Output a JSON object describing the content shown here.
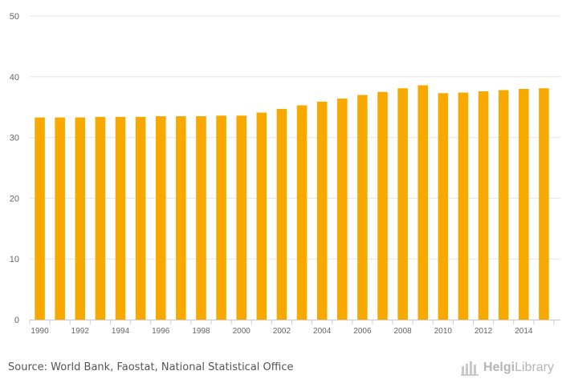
{
  "chart_data": {
    "type": "bar",
    "categories": [
      "1990",
      "1991",
      "1992",
      "1993",
      "1994",
      "1995",
      "1996",
      "1997",
      "1998",
      "1999",
      "2000",
      "2001",
      "2002",
      "2003",
      "2004",
      "2005",
      "2006",
      "2007",
      "2008",
      "2009",
      "2010",
      "2011",
      "2012",
      "2013",
      "2014",
      "2015"
    ],
    "x_tick_labels": [
      "1990",
      "1992",
      "1994",
      "1996",
      "1998",
      "2000",
      "2002",
      "2004",
      "2006",
      "2008",
      "2010",
      "2012",
      "2014"
    ],
    "values": [
      33.3,
      33.3,
      33.3,
      33.4,
      33.4,
      33.4,
      33.5,
      33.5,
      33.5,
      33.6,
      33.6,
      34.1,
      34.7,
      35.3,
      35.9,
      36.4,
      37.0,
      37.5,
      38.1,
      38.6,
      37.3,
      37.4,
      37.6,
      37.8,
      38.0,
      38.1
    ],
    "yticks": [
      0,
      10,
      20,
      30,
      40,
      50
    ],
    "ylim": [
      0,
      50
    ],
    "title": "",
    "xlabel": "",
    "ylabel": "",
    "grid": true,
    "bar_color": "#f7a900"
  },
  "footer": {
    "source": "Source: World Bank, Faostat, National Statistical Office",
    "brand_prefix": "Helgi",
    "brand_suffix": "Library"
  }
}
